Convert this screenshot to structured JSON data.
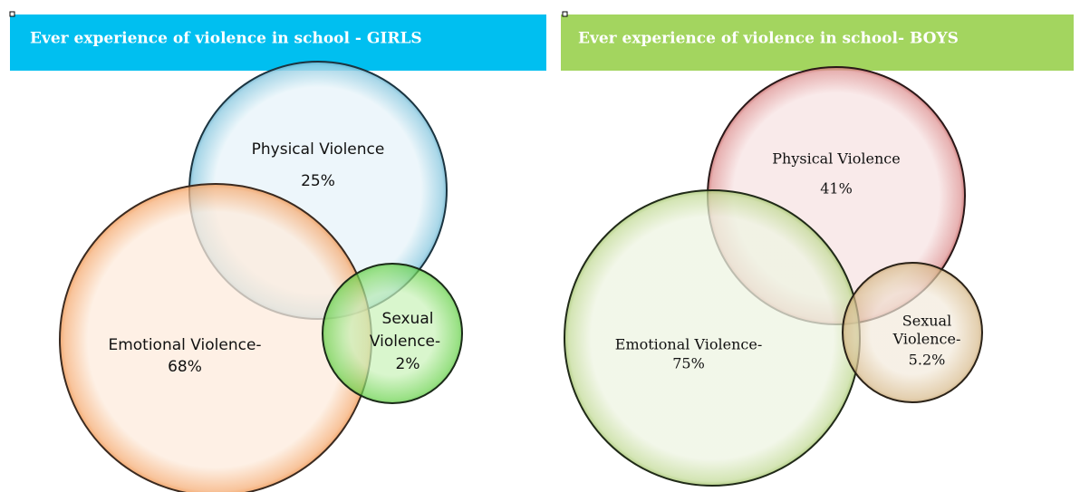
{
  "panels": [
    {
      "title": "Ever experience of violence in school - GIRLS",
      "circles": [
        {
          "lines": [
            "Physical Violence",
            "25%"
          ]
        },
        {
          "lines": [
            "Emotional Violence-",
            "68%"
          ]
        },
        {
          "lines": [
            "Sexual",
            "Violence-",
            "2%"
          ]
        }
      ]
    },
    {
      "title": "Ever experience of violence in school- BOYS",
      "circles": [
        {
          "lines": [
            "Physical Violence",
            "41%"
          ]
        },
        {
          "lines": [
            "Emotional Violence-",
            "75%"
          ]
        },
        {
          "lines": [
            "Sexual",
            "Violence-",
            "5.2%"
          ]
        }
      ]
    }
  ]
}
